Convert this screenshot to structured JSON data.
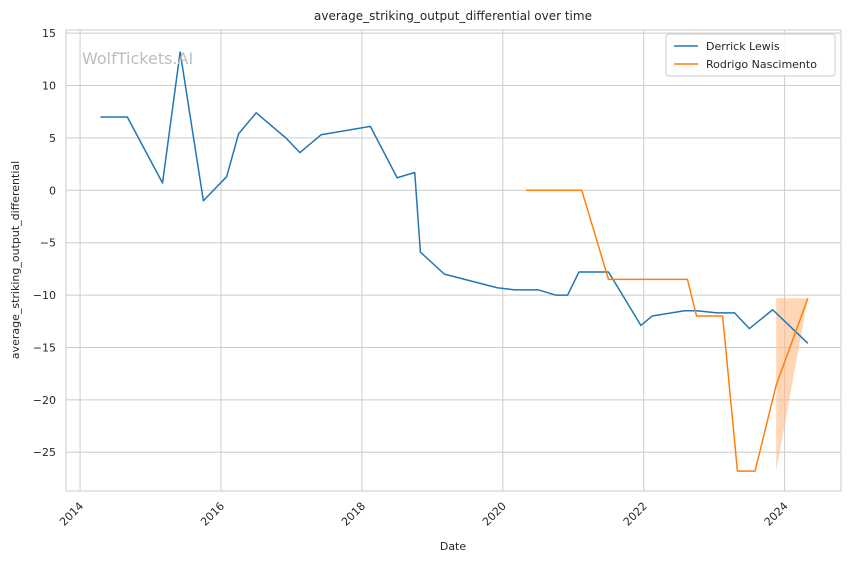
{
  "chart_data": {
    "type": "line",
    "title": "average_striking_output_differential over time",
    "xlabel": "Date",
    "ylabel": "average_striking_output_differential",
    "watermark": "WolfTickets.AI",
    "xlim": [
      2013.8,
      2024.8
    ],
    "ylim": [
      -28.7,
      15.3
    ],
    "x_ticks": [
      2014,
      2016,
      2018,
      2020,
      2022,
      2024
    ],
    "y_ticks": [
      15,
      10,
      5,
      0,
      -5,
      -10,
      -15,
      -20,
      -25
    ],
    "grid": true,
    "legend_position": "top-right",
    "series": [
      {
        "name": "Derrick Lewis",
        "color": "#1f77b4",
        "points": [
          [
            2014.29,
            7.0
          ],
          [
            2014.67,
            7.0
          ],
          [
            2015.17,
            0.7
          ],
          [
            2015.42,
            13.2
          ],
          [
            2015.75,
            -1.0
          ],
          [
            2016.08,
            1.3
          ],
          [
            2016.25,
            5.4
          ],
          [
            2016.5,
            7.4
          ],
          [
            2016.92,
            5.0
          ],
          [
            2017.12,
            3.6
          ],
          [
            2017.42,
            5.3
          ],
          [
            2018.12,
            6.1
          ],
          [
            2018.5,
            1.2
          ],
          [
            2018.75,
            1.7
          ],
          [
            2018.83,
            -5.9
          ],
          [
            2019.17,
            -8.0
          ],
          [
            2019.92,
            -9.3
          ],
          [
            2020.17,
            -9.5
          ],
          [
            2020.5,
            -9.5
          ],
          [
            2020.75,
            -10.0
          ],
          [
            2020.92,
            -10.0
          ],
          [
            2021.08,
            -7.8
          ],
          [
            2021.5,
            -7.8
          ],
          [
            2021.96,
            -12.9
          ],
          [
            2022.12,
            -12.0
          ],
          [
            2022.58,
            -11.5
          ],
          [
            2022.75,
            -11.5
          ],
          [
            2023.04,
            -11.7
          ],
          [
            2023.29,
            -11.7
          ],
          [
            2023.5,
            -13.2
          ],
          [
            2023.83,
            -11.4
          ],
          [
            2024.33,
            -14.6
          ]
        ]
      },
      {
        "name": "Rodrigo Nascimento",
        "color": "#ff7f0e",
        "band_color": "#ffbb85",
        "points": [
          [
            2020.33,
            0.0
          ],
          [
            2021.12,
            0.0
          ],
          [
            2021.5,
            -8.5
          ],
          [
            2022.62,
            -8.5
          ],
          [
            2022.75,
            -12.0
          ],
          [
            2023.12,
            -12.0
          ],
          [
            2023.33,
            -26.8
          ],
          [
            2023.58,
            -26.8
          ],
          [
            2023.88,
            -18.6
          ],
          [
            2024.33,
            -10.3
          ]
        ],
        "band": [
          [
            2023.88,
            -26.8,
            -10.3
          ],
          [
            2024.33,
            -10.3,
            -10.3
          ]
        ]
      }
    ]
  }
}
